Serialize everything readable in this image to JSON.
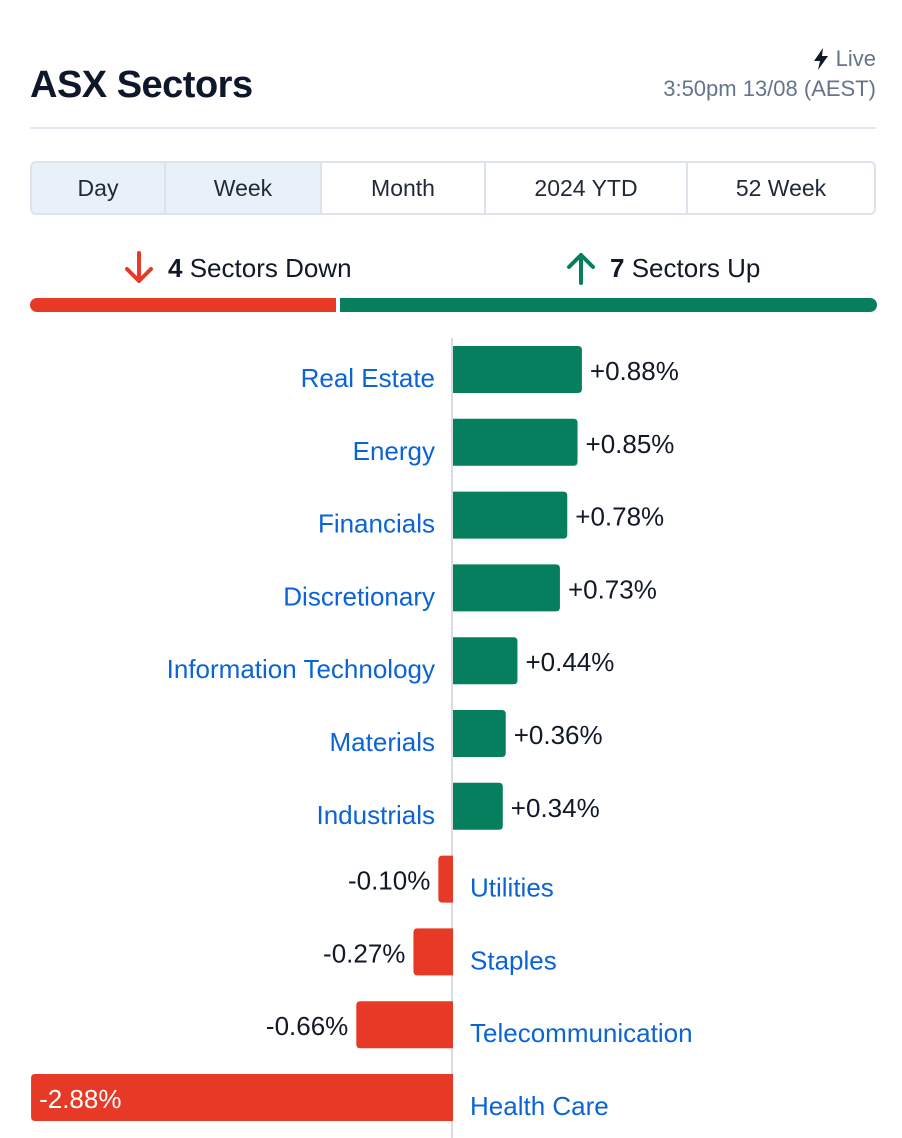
{
  "header": {
    "title": "ASX Sectors",
    "live_label": "Live",
    "timestamp": "3:50pm 13/08 (AEST)"
  },
  "tabs": [
    {
      "label": "Day",
      "active": true
    },
    {
      "label": "Week",
      "active": true
    },
    {
      "label": "Month",
      "active": false
    },
    {
      "label": "2024 YTD",
      "active": false
    },
    {
      "label": "52 Week",
      "active": false
    }
  ],
  "summary": {
    "down_count": "4",
    "down_label": "Sectors Down",
    "up_count": "7",
    "up_label": "Sectors Up"
  },
  "colors": {
    "up": "#057f5e",
    "down": "#e63a26",
    "link": "#0b64d6"
  },
  "chart_data": {
    "type": "bar",
    "orientation": "horizontal",
    "categories": [
      "Real Estate",
      "Energy",
      "Financials",
      "Discretionary",
      "Information Technology",
      "Materials",
      "Industrials",
      "Utilities",
      "Staples",
      "Telecommunication",
      "Health Care"
    ],
    "values": [
      0.88,
      0.85,
      0.78,
      0.73,
      0.44,
      0.36,
      0.34,
      -0.1,
      -0.27,
      -0.66,
      -2.88
    ],
    "labels": [
      "+0.88%",
      "+0.85%",
      "+0.78%",
      "+0.73%",
      "+0.44%",
      "+0.36%",
      "+0.34%",
      "-0.10%",
      "-0.27%",
      "-0.66%",
      "-2.88%"
    ]
  }
}
